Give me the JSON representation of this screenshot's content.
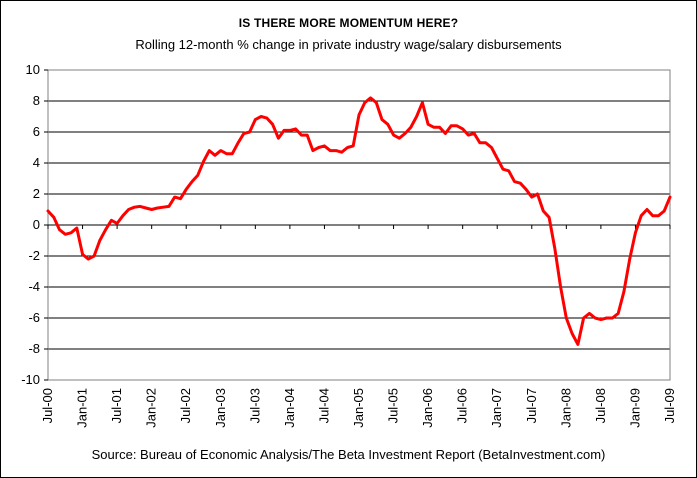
{
  "chart_data": {
    "type": "line",
    "title": "IS THERE MORE MOMENTUM HERE?",
    "subtitle": "Rolling 12-month % change in private industry wage/salary disbursements",
    "source": "Source: Bureau of Economic Analysis/The Beta Investment Report (BetaInvestment.com)",
    "xlabel": "",
    "ylabel": "",
    "ylim": [
      -10,
      10
    ],
    "yticks": [
      10,
      8,
      6,
      4,
      2,
      0,
      -2,
      -4,
      -6,
      -8,
      -10
    ],
    "xticks": [
      "Jul-00",
      "Jan-01",
      "Jul-01",
      "Jan-02",
      "Jul-02",
      "Jan-03",
      "Jul-03",
      "Jan-04",
      "Jul-04",
      "Jan-05",
      "Jul-05",
      "Jan-06",
      "Jul-06",
      "Jan-07",
      "Jul-07",
      "Jan-08",
      "Jul-08",
      "Jan-09",
      "Jul-09"
    ],
    "grid": "horizontal",
    "line_color": "#ff0000",
    "series": [
      {
        "values": [
          0.9,
          0.5,
          -0.3,
          -0.6,
          -0.5,
          -0.2,
          -1.9,
          -2.2,
          -2.0,
          -1.0,
          -0.3,
          0.3,
          0.1,
          0.6,
          1.0,
          1.15,
          1.2,
          1.1,
          1.0,
          1.1,
          1.15,
          1.2,
          1.8,
          1.7,
          2.3,
          2.8,
          3.2,
          4.1,
          4.8,
          4.5,
          4.8,
          4.6,
          4.6,
          5.3,
          5.9,
          6.0,
          6.8,
          7.0,
          6.9,
          6.5,
          5.6,
          6.1,
          6.1,
          6.2,
          5.8,
          5.8,
          4.8,
          5.0,
          5.1,
          4.8,
          4.8,
          4.7,
          5.0,
          5.1,
          7.1,
          7.9,
          8.2,
          7.9,
          6.8,
          6.5,
          5.8,
          5.6,
          5.9,
          6.3,
          7.0,
          7.9,
          6.5,
          6.3,
          6.3,
          5.9,
          6.4,
          6.4,
          6.2,
          5.8,
          5.9,
          5.3,
          5.3,
          5.0,
          4.3,
          3.6,
          3.5,
          2.8,
          2.7,
          2.3,
          1.8,
          2.0,
          0.9,
          0.5,
          -1.5,
          -4.0,
          -6.0,
          -7.0,
          -7.7,
          -6.0,
          -5.7,
          -6.0,
          -6.1,
          -6.0,
          -6.0,
          -5.7,
          -4.3,
          -2.2,
          -0.5,
          0.6,
          1.0,
          0.6,
          0.6,
          0.9,
          1.8
        ]
      }
    ]
  }
}
